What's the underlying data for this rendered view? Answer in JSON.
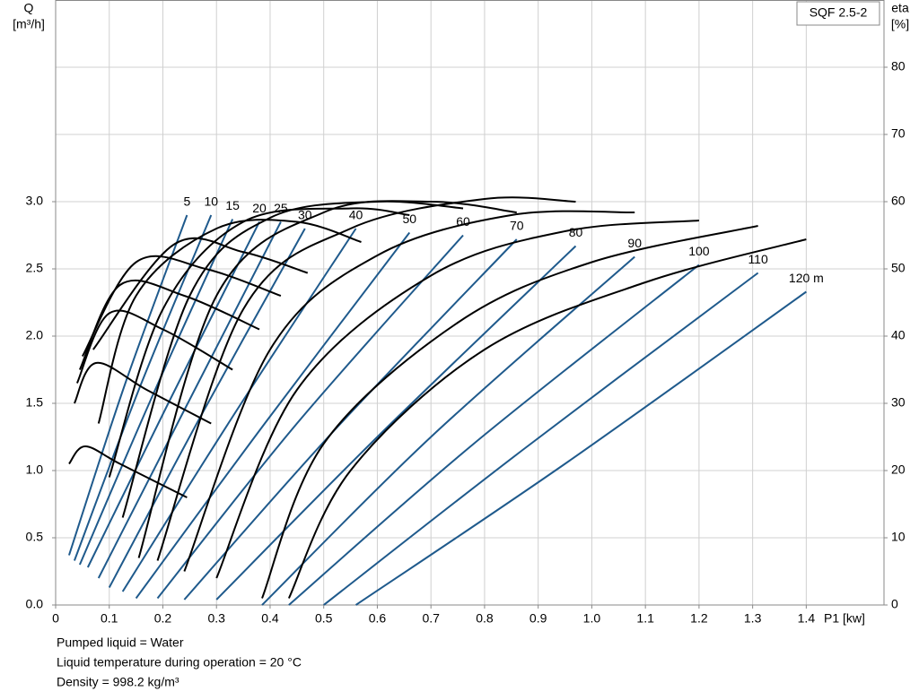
{
  "chart_data": {
    "type": "line",
    "badge": "SQF 2.5-2",
    "x_label": "P1 [kw]",
    "y_label": [
      "Q",
      "[m³/h]"
    ],
    "y2_label": [
      "eta",
      "[%]"
    ],
    "notes": [
      "Pumped liquid = Water",
      "Liquid temperature during operation = 20 °C",
      "Density = 998.2 kg/m³"
    ],
    "xlim": [
      0,
      1.545
    ],
    "ylim": [
      0,
      4.5
    ],
    "y2lim": [
      0,
      90
    ],
    "grid": true,
    "xticks": [
      0,
      0.1,
      0.2,
      0.3,
      0.4,
      0.5,
      0.6,
      0.7,
      0.8,
      0.9,
      {
        "value": 1,
        "label": "1.0"
      },
      1.1,
      1.2,
      1.3,
      1.4
    ],
    "yticks": [
      {
        "value": 0,
        "label": "0.0"
      },
      0.5,
      {
        "value": 1,
        "label": "1.0"
      },
      1.5,
      {
        "value": 2,
        "label": "2.0"
      },
      2.5,
      {
        "value": 3,
        "label": "3.0"
      }
    ],
    "y2ticks": [
      0,
      10,
      20,
      30,
      40,
      50,
      60,
      70,
      80
    ],
    "series": [
      {
        "name": "5",
        "color": "#1f5a8c",
        "axis": "y",
        "x": [
          0.025,
          0.13,
          0.245
        ],
        "values": [
          0.37,
          1.65,
          2.9
        ]
      },
      {
        "name": "10",
        "color": "#1f5a8c",
        "axis": "y",
        "x": [
          0.035,
          0.155,
          0.29
        ],
        "values": [
          0.33,
          1.6,
          2.9
        ]
      },
      {
        "name": "15",
        "color": "#1f5a8c",
        "axis": "y",
        "x": [
          0.045,
          0.18,
          0.33
        ],
        "values": [
          0.3,
          1.55,
          2.87
        ]
      },
      {
        "name": "20",
        "color": "#1f5a8c",
        "axis": "y",
        "x": [
          0.06,
          0.21,
          0.38
        ],
        "values": [
          0.28,
          1.5,
          2.85
        ]
      },
      {
        "name": "25",
        "color": "#1f5a8c",
        "axis": "y",
        "x": [
          0.08,
          0.24,
          0.42
        ],
        "values": [
          0.2,
          1.45,
          2.85
        ]
      },
      {
        "name": "30",
        "color": "#1f5a8c",
        "axis": "y",
        "x": [
          0.1,
          0.27,
          0.465
        ],
        "values": [
          0.13,
          1.4,
          2.8
        ]
      },
      {
        "name": "40",
        "color": "#1f5a8c",
        "axis": "y",
        "x": [
          0.125,
          0.33,
          0.56
        ],
        "values": [
          0.1,
          1.4,
          2.8
        ]
      },
      {
        "name": "50",
        "color": "#1f5a8c",
        "axis": "y",
        "x": [
          0.15,
          0.39,
          0.66
        ],
        "values": [
          0.05,
          1.35,
          2.77
        ]
      },
      {
        "name": "60",
        "color": "#1f5a8c",
        "axis": "y",
        "x": [
          0.19,
          0.45,
          0.76
        ],
        "values": [
          0.05,
          1.35,
          2.75
        ]
      },
      {
        "name": "70",
        "color": "#1f5a8c",
        "axis": "y",
        "x": [
          0.24,
          0.52,
          0.86
        ],
        "values": [
          0.04,
          1.3,
          2.72
        ]
      },
      {
        "name": "80",
        "color": "#1f5a8c",
        "axis": "y",
        "x": [
          0.3,
          0.6,
          0.97
        ],
        "values": [
          0.04,
          1.25,
          2.67
        ]
      },
      {
        "name": "90",
        "color": "#1f5a8c",
        "axis": "y",
        "x": [
          0.385,
          0.7,
          1.08
        ],
        "values": [
          0.0,
          1.25,
          2.59
        ]
      },
      {
        "name": "100",
        "color": "#1f5a8c",
        "axis": "y",
        "x": [
          0.435,
          0.78,
          1.2
        ],
        "values": [
          0.0,
          1.2,
          2.53
        ]
      },
      {
        "name": "110",
        "color": "#1f5a8c",
        "axis": "y",
        "x": [
          0.5,
          0.87,
          1.31
        ],
        "values": [
          0.0,
          1.15,
          2.47
        ]
      },
      {
        "name": "120 m",
        "color": "#1f5a8c",
        "axis": "y",
        "x": [
          0.56,
          0.95,
          1.4
        ],
        "values": [
          0.0,
          1.05,
          2.33
        ]
      },
      {
        "color": "#000000",
        "axis": "y2",
        "x": [
          0.025,
          0.055,
          0.12,
          0.245
        ],
        "values": [
          21,
          23.6,
          21,
          16
        ]
      },
      {
        "color": "#000000",
        "axis": "y2",
        "x": [
          0.035,
          0.075,
          0.17,
          0.29
        ],
        "values": [
          30,
          36,
          32,
          27
        ]
      },
      {
        "color": "#000000",
        "axis": "y2",
        "x": [
          0.04,
          0.1,
          0.2,
          0.33
        ],
        "values": [
          33,
          43.4,
          41,
          35
        ]
      },
      {
        "color": "#000000",
        "axis": "y2",
        "x": [
          0.045,
          0.12,
          0.24,
          0.38
        ],
        "values": [
          35,
          47.6,
          46,
          41
        ]
      },
      {
        "color": "#000000",
        "axis": "y2",
        "x": [
          0.05,
          0.15,
          0.28,
          0.42
        ],
        "values": [
          37,
          51,
          50,
          46
        ]
      },
      {
        "color": "#000000",
        "axis": "y2",
        "x": [
          0.07,
          0.22,
          0.35,
          0.47
        ],
        "values": [
          38,
          53.6,
          52.5,
          49.4
        ]
      },
      {
        "color": "#000000",
        "axis": "y2",
        "x": [
          0.08,
          0.15,
          0.3,
          0.45,
          0.57
        ],
        "values": [
          27,
          46,
          56,
          57,
          54
        ]
      },
      {
        "color": "#000000",
        "axis": "y2",
        "x": [
          0.1,
          0.2,
          0.35,
          0.55,
          0.66
        ],
        "values": [
          19,
          44,
          57,
          59,
          58
        ]
      },
      {
        "color": "#000000",
        "axis": "y2",
        "x": [
          0.125,
          0.25,
          0.4,
          0.6,
          0.76
        ],
        "values": [
          13,
          46,
          57.6,
          60,
          59
        ]
      },
      {
        "color": "#000000",
        "axis": "y2",
        "x": [
          0.155,
          0.3,
          0.5,
          0.7,
          0.86
        ],
        "values": [
          7,
          46,
          58.4,
          60,
          58.4
        ]
      },
      {
        "color": "#000000",
        "axis": "y2",
        "x": [
          0.19,
          0.35,
          0.55,
          0.8,
          0.97
        ],
        "values": [
          6.6,
          44,
          56,
          60.4,
          60
        ]
      },
      {
        "color": "#000000",
        "axis": "y2",
        "x": [
          0.24,
          0.4,
          0.6,
          0.85,
          1.08
        ],
        "values": [
          5,
          38,
          52,
          58,
          58.4
        ]
      },
      {
        "color": "#000000",
        "axis": "y2",
        "x": [
          0.3,
          0.45,
          0.7,
          0.95,
          1.2
        ],
        "values": [
          4,
          32,
          49,
          55.6,
          57.2
        ]
      },
      {
        "color": "#000000",
        "axis": "y2",
        "x": [
          0.385,
          0.5,
          0.75,
          1.0,
          1.31
        ],
        "values": [
          1,
          24,
          42,
          51,
          56.4
        ]
      },
      {
        "color": "#000000",
        "axis": "y2",
        "x": [
          0.435,
          0.55,
          0.8,
          1.1,
          1.4
        ],
        "values": [
          1,
          20,
          38,
          48,
          54.4
        ]
      }
    ]
  }
}
